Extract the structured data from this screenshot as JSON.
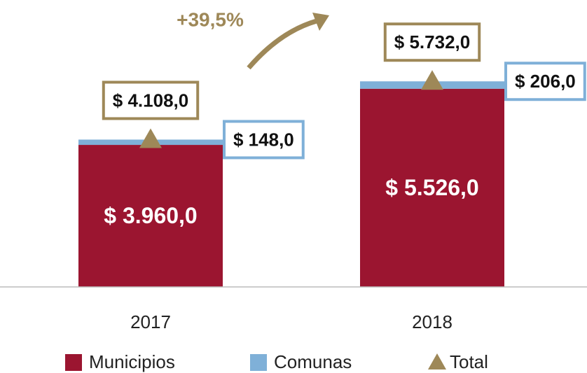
{
  "chart_data": {
    "type": "bar",
    "stacked": true,
    "annotation": "+39,5%",
    "categories": [
      "2017",
      "2018"
    ],
    "series": [
      {
        "name": "Municipios",
        "color": "#9b1530",
        "values": [
          3960,
          5526
        ],
        "value_labels": [
          "$ 3.960,0",
          "$ 5.526,0"
        ]
      },
      {
        "name": "Comunas",
        "color": "#7fb0d8",
        "values": [
          148,
          206
        ],
        "value_labels": [
          "$ 148,0",
          "$ 206,0"
        ]
      },
      {
        "name": "Total",
        "color": "#9e8858",
        "marker": "triangle",
        "values": [
          4108,
          5732
        ],
        "value_labels": [
          "$ 4.108,0",
          "$ 5.732,0"
        ]
      }
    ],
    "ylim": [
      0,
      8000
    ]
  }
}
